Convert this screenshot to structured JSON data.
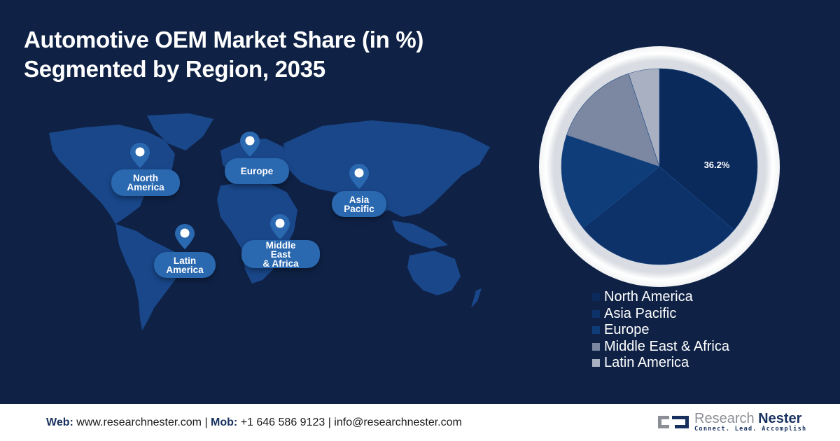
{
  "title": {
    "line1": "Automotive OEM Market Share (in %)",
    "line2": "Segmented by Region, 2035"
  },
  "map": {
    "regions": [
      {
        "id": "north-america",
        "label_line1": "North",
        "label_line2": "America",
        "label_line3": ""
      },
      {
        "id": "europe",
        "label_line1": "Europe",
        "label_line2": "",
        "label_line3": ""
      },
      {
        "id": "asia-pacific",
        "label_line1": "Asia",
        "label_line2": "Pacific",
        "label_line3": ""
      },
      {
        "id": "latin-america",
        "label_line1": "Latin",
        "label_line2": "America",
        "label_line3": ""
      },
      {
        "id": "middle-east-africa",
        "label_line1": "Middle",
        "label_line2": "East",
        "label_line3": "& Africa"
      }
    ]
  },
  "chart_data": {
    "type": "pie",
    "title": "Automotive OEM Market Share (in %) Segmented by Region, 2035",
    "categories": [
      "North America",
      "Asia Pacific",
      "Europe",
      "Middle East & Africa",
      "Latin America"
    ],
    "values": [
      36.2,
      28.0,
      16.0,
      14.7,
      5.1
    ],
    "colors": [
      "#0b2a5c",
      "#0d3269",
      "#0e3d7a",
      "#7c88a1",
      "#a9b0c2"
    ],
    "data_labels": [
      {
        "category": "North America",
        "text": "36.2%"
      }
    ],
    "start_angle": 0,
    "direction": "clockwise",
    "legend_position": "bottom-right"
  },
  "legend": {
    "items": [
      {
        "label": "North America",
        "color": "#0b2a5c"
      },
      {
        "label": "Asia Pacific",
        "color": "#0d3269"
      },
      {
        "label": "Europe",
        "color": "#0e3d7a"
      },
      {
        "label": "Middle East & Africa",
        "color": "#7c88a1"
      },
      {
        "label": "Latin America",
        "color": "#a9b0c2"
      }
    ]
  },
  "footer": {
    "web_label": "Web:",
    "web_value": " www.researchnester.com | ",
    "mob_label": "Mob:",
    "mob_value": " +1 646 586 9123 | info@researchnester.com",
    "logo_name_part1": "Research ",
    "logo_name_part2": "Nester",
    "logo_tagline": "Connect. Lead. Accomplish"
  },
  "colors": {
    "background": "#0f2246",
    "land": "#1a4a8e",
    "label_bg": "#2a68b0",
    "brand": "#17305e"
  }
}
